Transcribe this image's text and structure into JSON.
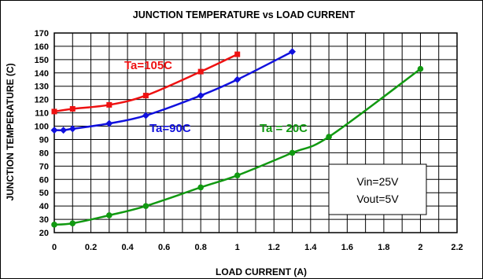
{
  "chart_data": {
    "type": "line",
    "title": "JUNCTION TEMPERATURE vs LOAD CURRENT",
    "xlabel": "LOAD CURRENT (A)",
    "ylabel": "JUNCTION TEMPERATURE (C)",
    "xlim": [
      0,
      2.2
    ],
    "ylim": [
      20,
      170
    ],
    "x_ticks": [
      "0",
      "0.2",
      "0.4",
      "0.6",
      "0.8",
      "1",
      "1.2",
      "1.4",
      "1.6",
      "1.8",
      "2",
      "2.2"
    ],
    "y_ticks": [
      "20",
      "30",
      "40",
      "50",
      "60",
      "70",
      "80",
      "90",
      "100",
      "110",
      "120",
      "130",
      "140",
      "150",
      "160",
      "170"
    ],
    "grid": true,
    "series": [
      {
        "name": "Ta=105C",
        "color": "#ee1111",
        "marker": "square",
        "x": [
          0,
          0.1,
          0.3,
          0.5,
          0.8,
          1.0
        ],
        "y": [
          111,
          113,
          116,
          123,
          141,
          154
        ]
      },
      {
        "name": "Ta=90C",
        "color": "#1111dd",
        "marker": "diamond",
        "x": [
          0,
          0.05,
          0.1,
          0.3,
          0.5,
          0.8,
          1.0,
          1.3
        ],
        "y": [
          97,
          97,
          98,
          102,
          108,
          123,
          135,
          156
        ]
      },
      {
        "name": "Ta = 20C",
        "color": "#119911",
        "marker": "circle",
        "x": [
          0,
          0.1,
          0.3,
          0.5,
          0.8,
          1.0,
          1.3,
          1.5,
          2.0
        ],
        "y": [
          26,
          27,
          33,
          40,
          54,
          63,
          80,
          92,
          143
        ]
      }
    ],
    "annotation": {
      "lines": [
        "Vin=25V",
        "Vout=5V"
      ]
    }
  }
}
